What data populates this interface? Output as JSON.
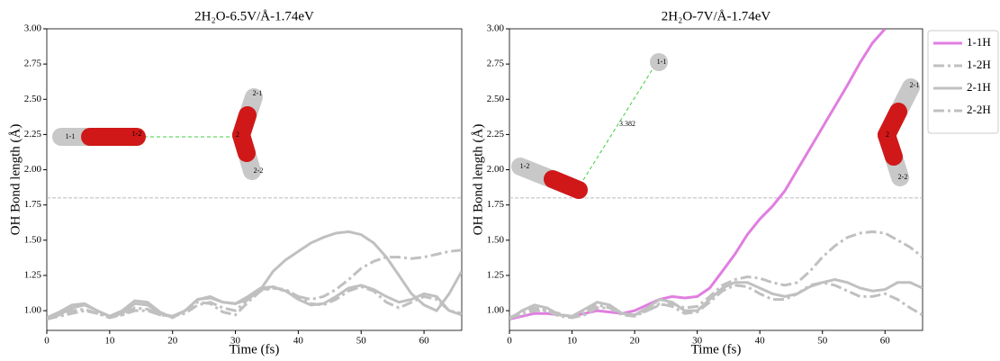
{
  "chart_data": [
    {
      "type": "line",
      "title": "2H₂O-6.5V/Å-1.74eV",
      "xlabel": "Time (fs)",
      "ylabel": "OH Bond length (Å)",
      "x": [
        0,
        2,
        4,
        6,
        8,
        10,
        12,
        14,
        16,
        18,
        20,
        22,
        24,
        26,
        28,
        30,
        32,
        34,
        36,
        38,
        40,
        42,
        44,
        46,
        48,
        50,
        52,
        54,
        56,
        58,
        60,
        62,
        64,
        66
      ],
      "series": [
        {
          "color": "#c0c0c0",
          "dash": "solid",
          "values": [
            0.95,
            0.99,
            1.04,
            1.05,
            1.0,
            0.96,
            1.0,
            1.07,
            1.06,
            0.99,
            0.95,
            1.0,
            1.08,
            1.09,
            1.06,
            1.05,
            1.1,
            1.16,
            1.17,
            1.14,
            1.08,
            1.04,
            1.05,
            1.1,
            1.16,
            1.18,
            1.15,
            1.1,
            1.06,
            1.08,
            1.12,
            1.1,
            1.0,
            0.97
          ]
        },
        {
          "color": "#c0c0c0",
          "dash": "dashdot",
          "values": [
            0.95,
            0.96,
            0.98,
            1.0,
            0.98,
            0.96,
            0.97,
            1.0,
            1.0,
            0.97,
            0.96,
            0.98,
            1.04,
            1.06,
            1.02,
            1.0,
            1.08,
            1.15,
            1.16,
            1.14,
            1.1,
            1.08,
            1.1,
            1.15,
            1.22,
            1.3,
            1.35,
            1.38,
            1.38,
            1.37,
            1.38,
            1.4,
            1.42,
            1.43
          ]
        },
        {
          "color": "#c0c0c0",
          "dash": "solid",
          "values": [
            0.94,
            0.97,
            1.02,
            1.04,
            1.0,
            0.96,
            0.98,
            1.05,
            1.04,
            0.98,
            0.96,
            1.0,
            1.08,
            1.1,
            1.06,
            1.05,
            1.08,
            1.15,
            1.28,
            1.36,
            1.42,
            1.48,
            1.52,
            1.55,
            1.56,
            1.54,
            1.48,
            1.38,
            1.25,
            1.12,
            1.04,
            1.0,
            1.12,
            1.28
          ]
        },
        {
          "color": "#c0c0c0",
          "dash": "dashdot",
          "values": [
            0.94,
            0.96,
            1.0,
            1.01,
            0.98,
            0.95,
            0.97,
            1.02,
            1.01,
            0.97,
            0.96,
            1.0,
            1.06,
            1.05,
            0.99,
            0.97,
            1.06,
            1.14,
            1.16,
            1.15,
            1.1,
            1.05,
            1.04,
            1.08,
            1.14,
            1.17,
            1.14,
            1.06,
            1.02,
            1.06,
            1.1,
            1.08,
            1.0,
            0.98
          ]
        }
      ],
      "hline": 1.8,
      "annotations": [
        "1-1",
        "1-2",
        "2-1",
        "2",
        "2-2"
      ],
      "xlim": [
        0,
        66
      ],
      "xticks": [
        0,
        10,
        20,
        30,
        40,
        50,
        60
      ],
      "ylim": [
        0.86,
        3.0
      ],
      "yticks": [
        {
          "value": 1,
          "label": "1.00"
        },
        {
          "value": 1.25,
          "label": "1.25"
        },
        {
          "value": 1.5,
          "label": "1.50"
        },
        {
          "value": 1.75,
          "label": "1.75"
        },
        {
          "value": 2,
          "label": "2.00"
        },
        {
          "value": 2.25,
          "label": "2.25"
        },
        {
          "value": 2.5,
          "label": "2.50"
        },
        {
          "value": 2.75,
          "label": "2.75"
        },
        {
          "value": 3,
          "label": "3.00"
        }
      ]
    },
    {
      "type": "line",
      "title": "2H₂O-7V/Å-1.74eV",
      "xlabel": "Time (fs)",
      "ylabel": "OH Bond length (Å)",
      "x": [
        0,
        2,
        4,
        6,
        8,
        10,
        12,
        14,
        16,
        18,
        20,
        22,
        24,
        26,
        28,
        30,
        32,
        34,
        36,
        38,
        40,
        42,
        44,
        46,
        48,
        50,
        52,
        54,
        56,
        58,
        60,
        62,
        64,
        66
      ],
      "series": [
        {
          "name": "1-1H",
          "color": "#e07ee0",
          "dash": "solid",
          "values": [
            0.94,
            0.96,
            0.98,
            0.98,
            0.97,
            0.96,
            0.98,
            1.0,
            0.99,
            0.98,
            1.0,
            1.04,
            1.08,
            1.1,
            1.09,
            1.1,
            1.16,
            1.28,
            1.4,
            1.54,
            1.65,
            1.74,
            1.85,
            2.0,
            2.15,
            2.3,
            2.45,
            2.6,
            2.76,
            2.9,
            3.0,
            null,
            null,
            null
          ]
        },
        {
          "name": "1-2H",
          "color": "#c0c0c0",
          "dash": "dashdot",
          "values": [
            0.95,
            0.97,
            1.0,
            1.0,
            0.98,
            0.95,
            0.97,
            1.02,
            1.02,
            0.98,
            0.97,
            1.0,
            1.04,
            1.05,
            1.02,
            1.03,
            1.1,
            1.18,
            1.22,
            1.24,
            1.23,
            1.2,
            1.18,
            1.2,
            1.28,
            1.38,
            1.46,
            1.52,
            1.55,
            1.56,
            1.55,
            1.5,
            1.45,
            1.38
          ]
        },
        {
          "name": "2-1H",
          "color": "#c0c0c0",
          "dash": "solid",
          "values": [
            0.94,
            1.0,
            1.04,
            1.02,
            0.97,
            0.96,
            1.01,
            1.06,
            1.04,
            0.98,
            0.97,
            1.02,
            1.08,
            1.06,
            1.0,
            1.0,
            1.08,
            1.16,
            1.2,
            1.2,
            1.16,
            1.12,
            1.1,
            1.12,
            1.17,
            1.2,
            1.22,
            1.2,
            1.16,
            1.14,
            1.15,
            1.2,
            1.2,
            1.16
          ]
        },
        {
          "name": "2-2H",
          "color": "#c0c0c0",
          "dash": "dashdot",
          "values": [
            0.95,
            0.99,
            1.02,
            1.0,
            0.96,
            0.95,
            0.99,
            1.04,
            1.02,
            0.97,
            0.96,
            1.0,
            1.05,
            1.03,
            0.98,
            0.99,
            1.06,
            1.14,
            1.18,
            1.17,
            1.12,
            1.08,
            1.08,
            1.12,
            1.18,
            1.2,
            1.18,
            1.14,
            1.1,
            1.1,
            1.12,
            1.08,
            1.02,
            0.97
          ]
        }
      ],
      "hline": 1.8,
      "legend": "outside-right",
      "annotations": [
        "1-1",
        "1-2",
        "2-1",
        "2",
        "2-2",
        "3.382"
      ],
      "xlim": [
        0,
        66
      ],
      "xticks": [
        0,
        10,
        20,
        30,
        40,
        50,
        60
      ],
      "ylim": [
        0.86,
        3.0
      ],
      "yticks": [
        {
          "value": 1,
          "label": "1.00"
        },
        {
          "value": 1.25,
          "label": "1.25"
        },
        {
          "value": 1.5,
          "label": "1.50"
        },
        {
          "value": 1.75,
          "label": "1.75"
        },
        {
          "value": 2,
          "label": "2.00"
        },
        {
          "value": 2.25,
          "label": "2.25"
        },
        {
          "value": 2.5,
          "label": "2.50"
        },
        {
          "value": 2.75,
          "label": "2.75"
        },
        {
          "value": 3,
          "label": "3.00"
        }
      ]
    }
  ]
}
